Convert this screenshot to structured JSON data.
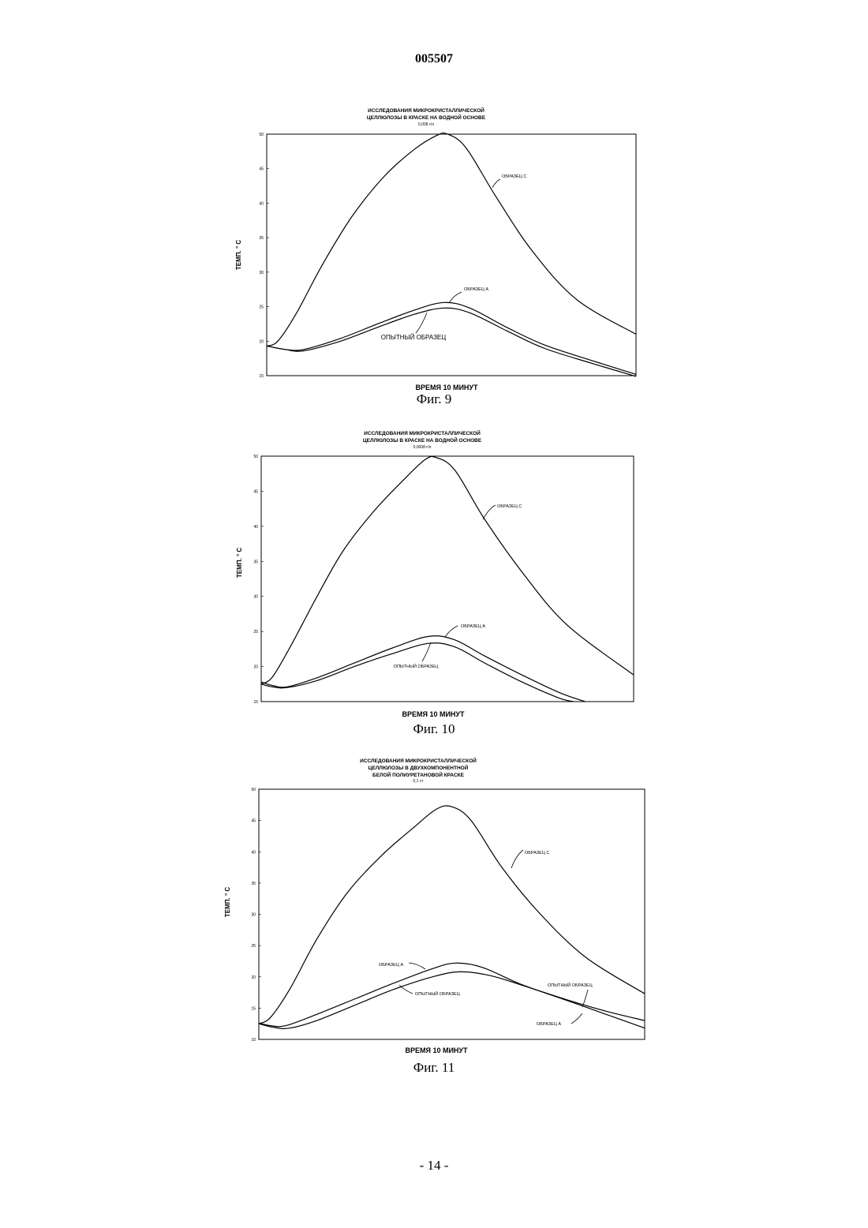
{
  "page": {
    "number": "005507",
    "footer": "- 14 -"
  },
  "figures": [
    {
      "caption": "Фиг. 9"
    },
    {
      "caption": "Фиг. 10"
    },
    {
      "caption": "Фиг. 11"
    }
  ],
  "chart_data": [
    {
      "type": "line",
      "title": [
        "ИССЛЕДОВАНИЯ МИКРОКРИСТАЛЛИЧЕСКОЙ",
        "ЦЕЛЛЮЛОЗЫ В КРАСКЕ НА ВОДНОЙ ОСНОВЕ",
        "0,008 г/л"
      ],
      "xlabel": "ВРЕМЯ 10 МИНУТ",
      "ylabel": "ТЕМП. ° С",
      "ylim": [
        15,
        50
      ],
      "xlim": [
        0,
        1
      ],
      "yticks": [
        "50",
        "45",
        "40",
        "35",
        "30",
        "25",
        "20",
        "15"
      ],
      "series": [
        {
          "name": "ОБРАЗЕЦ С",
          "x": [
            0,
            0.03,
            0.08,
            0.15,
            0.23,
            0.32,
            0.4,
            0.46,
            0.49,
            0.54,
            0.62,
            0.72,
            0.84,
            1.0
          ],
          "y": [
            19.3,
            20.0,
            24.0,
            31.0,
            38.0,
            44.0,
            47.8,
            49.8,
            50.0,
            48.0,
            41.0,
            33.0,
            26.0,
            21.0
          ]
        },
        {
          "name": "ОБРАЗЕЦ А",
          "x": [
            0,
            0.05,
            0.1,
            0.2,
            0.3,
            0.4,
            0.48,
            0.55,
            0.65,
            0.75,
            0.88,
            1.0
          ],
          "y": [
            19.3,
            18.8,
            18.8,
            20.4,
            22.5,
            24.5,
            25.6,
            24.8,
            22.0,
            19.5,
            17.2,
            15.2
          ]
        },
        {
          "name": "ОПЫТНЫЙ ОБРАЗЕЦ",
          "x": [
            0,
            0.05,
            0.1,
            0.2,
            0.3,
            0.4,
            0.48,
            0.55,
            0.65,
            0.75,
            0.88,
            1.0
          ],
          "y": [
            19.3,
            18.8,
            18.6,
            20.0,
            22.0,
            23.9,
            24.8,
            24.1,
            21.5,
            19.0,
            16.8,
            14.9
          ]
        }
      ],
      "annotations": [
        "ОБРАЗЕЦ С",
        "ОБРАЗЕЦ А",
        "ОПЫТНЫЙ ОБРАЗЕЦ"
      ]
    },
    {
      "type": "line",
      "title": [
        "ИССЛЕДОВАНИЯ МИКРОКРИСТАЛЛИЧЕСКОЙ",
        "ЦЕЛЛЮЛОЗЫ В КРАСКЕ НА ВОДНОЙ ОСНОВЕ",
        "0,0008 г/л"
      ],
      "xlabel": "ВРЕМЯ 10 МИНУТ",
      "ylabel": "ТЕМП. ° С",
      "ylim": [
        15,
        50
      ],
      "xlim": [
        0,
        1
      ],
      "yticks": [
        "50",
        "45",
        "40",
        "35",
        "30",
        "25",
        "20",
        "15"
      ],
      "series": [
        {
          "name": "ОБРАЗЕЦ С",
          "x": [
            0,
            0.03,
            0.08,
            0.15,
            0.22,
            0.3,
            0.38,
            0.44,
            0.47,
            0.52,
            0.6,
            0.7,
            0.82,
            1.0
          ],
          "y": [
            17.5,
            18.5,
            23.0,
            30.0,
            36.5,
            42.0,
            46.5,
            49.5,
            49.8,
            48.0,
            41.0,
            33.5,
            26.0,
            18.8
          ]
        },
        {
          "name": "ОБРАЗЕЦ А",
          "x": [
            0,
            0.03,
            0.07,
            0.15,
            0.25,
            0.35,
            0.45,
            0.52,
            0.6,
            0.7,
            0.8,
            0.87
          ],
          "y": [
            17.8,
            17.3,
            17.1,
            18.4,
            20.5,
            22.6,
            24.3,
            23.8,
            21.5,
            18.8,
            16.3,
            15.0
          ]
        },
        {
          "name": "ОПЫТНЫЙ ОБРАЗЕЦ",
          "x": [
            0,
            0.03,
            0.07,
            0.15,
            0.25,
            0.35,
            0.45,
            0.52,
            0.6,
            0.7,
            0.8,
            0.84
          ],
          "y": [
            17.5,
            17.1,
            17.0,
            18.0,
            20.0,
            21.8,
            23.3,
            22.8,
            20.5,
            17.8,
            15.5,
            15.0
          ]
        }
      ],
      "annotations": [
        "ОБРАЗЕЦ С",
        "ОБРАЗЕЦ А",
        "ОПЫТНЫЙ ОБРАЗЕЦ"
      ]
    },
    {
      "type": "line",
      "title": [
        "ИССЛЕДОВАНИЯ МИКРОКРИСТАЛЛИЧЕСКОЙ",
        "ЦЕЛЛЮЛОЗЫ В ДВУХКОМПОНЕНТНОЙ",
        "БЕЛОЙ ПОЛИУРЕТАНОВОЙ КРАСКЕ",
        "0,1 ст"
      ],
      "xlabel": "ВРЕМЯ 10 МИНУТ",
      "ylabel": "ТЕМП. ° С",
      "ylim": [
        10,
        50
      ],
      "xlim": [
        0,
        1
      ],
      "yticks": [
        "50",
        "45",
        "40",
        "35",
        "30",
        "25",
        "20",
        "15",
        "10"
      ],
      "series": [
        {
          "name": "ОБРАЗЕЦ С",
          "x": [
            0,
            0.03,
            0.08,
            0.15,
            0.23,
            0.32,
            0.4,
            0.46,
            0.5,
            0.55,
            0.63,
            0.73,
            0.85,
            1.0
          ],
          "y": [
            12.5,
            13.5,
            18.0,
            26.0,
            33.5,
            39.5,
            43.8,
            46.8,
            47.2,
            45.0,
            37.5,
            30.0,
            23.0,
            17.3
          ]
        },
        {
          "name": "ОБРАЗЕЦ А",
          "x": [
            0,
            0.03,
            0.07,
            0.15,
            0.25,
            0.35,
            0.45,
            0.51,
            0.58,
            0.68,
            0.8,
            0.9,
            1.0
          ],
          "y": [
            12.6,
            12.2,
            12.2,
            14.0,
            16.5,
            19.0,
            21.3,
            22.2,
            21.5,
            18.8,
            16.2,
            14.0,
            11.8
          ]
        },
        {
          "name": "ОПЫТНЫЙ ОБРАЗЕЦ",
          "x": [
            0,
            0.04,
            0.08,
            0.15,
            0.25,
            0.35,
            0.45,
            0.52,
            0.6,
            0.7,
            0.8,
            0.9,
            1.0
          ],
          "y": [
            12.5,
            11.9,
            11.8,
            13.0,
            15.5,
            18.0,
            20.0,
            20.8,
            20.2,
            18.3,
            16.3,
            14.5,
            13.0
          ]
        }
      ],
      "annotations": [
        "ОБРАЗЕЦ С",
        "ОБРАЗЕЦ А",
        "ОПЫТНЫЙ ОБРАЗЕЦ",
        "ОПЫТНЫЙ ОБРАЗЕЦ",
        "ОБРАЗЕЦ А"
      ]
    }
  ]
}
